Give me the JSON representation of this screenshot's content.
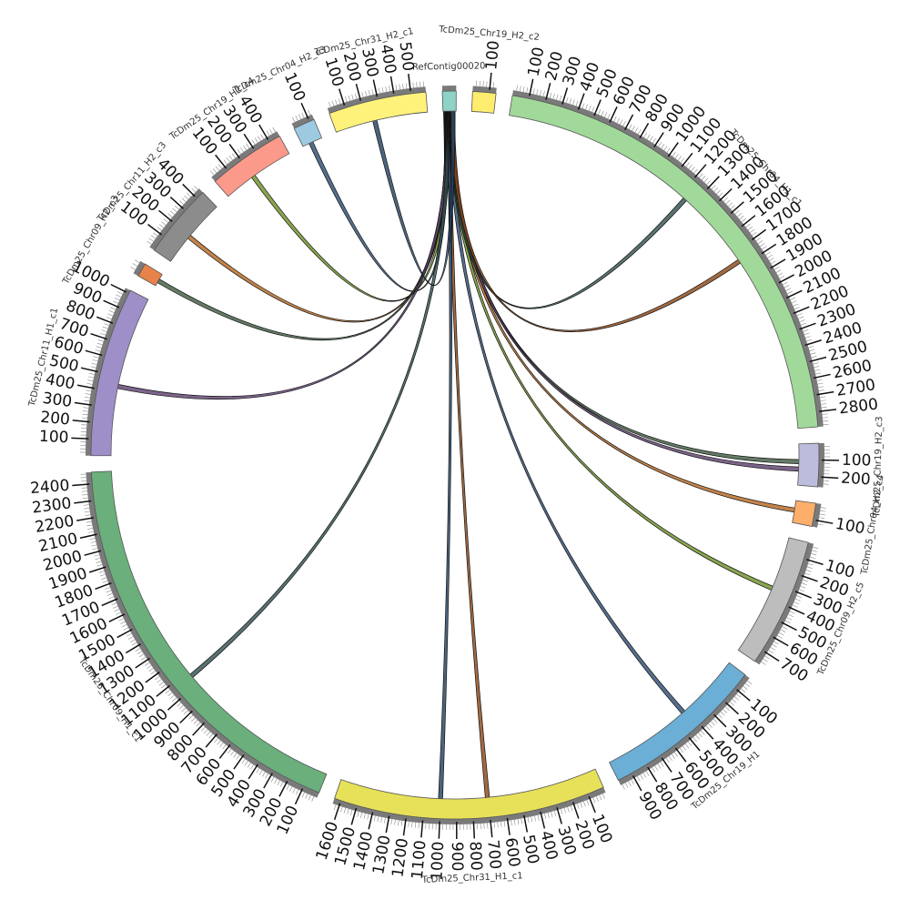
{
  "chart_data": {
    "type": "chord",
    "title": "",
    "segments": [
      {
        "name": "RefContig00020",
        "length": 20,
        "color": "#8dd3c7"
      },
      {
        "name": "TcDm25_Chr19_H2_c2",
        "length": 140,
        "color": "#ffed6f"
      },
      {
        "name": "TcDm25_Chr04_H1_c1",
        "length": 2890,
        "color": "#a1d99b"
      },
      {
        "name": "TcDm25_Chr19_H2_c3",
        "length": 260,
        "color": "#bcbddc"
      },
      {
        "name": "TcDm25_Chr04_H2_c4",
        "length": 140,
        "color": "#fdae6b"
      },
      {
        "name": "TcDm25_Chr09_H2_c5",
        "length": 780,
        "color": "#bdbdbd"
      },
      {
        "name": "TcDm25_Chr19_H1",
        "length": 990,
        "color": "#6baed6"
      },
      {
        "name": "TcDm25_Chr31_H1_c1",
        "length": 1640,
        "color": "#e7e15a"
      },
      {
        "name": "TcDm25_Chr09_H1_c1",
        "length": 2470,
        "color": "#6aaf7c"
      },
      {
        "name": "TcDm25_Chr11_H1_c1",
        "length": 1020,
        "color": "#9e8fc9"
      },
      {
        "name": "TcDm25_Chr09_H2_c3",
        "length": 70,
        "color": "#e6824a"
      },
      {
        "name": "TcDm25_Chr11_H2_c3",
        "length": 450,
        "color": "#8c8c8c"
      },
      {
        "name": "TcDm25_Chr19_H2_c4",
        "length": 470,
        "color": "#fb9a8a"
      },
      {
        "name": "TcDm25_Chr04_H2_c3",
        "length": 130,
        "color": "#9ecae1"
      },
      {
        "name": "TcDm25_Chr31_H2_c1",
        "length": 590,
        "color": "#fff27a"
      }
    ],
    "links": [
      {
        "source": 0,
        "target": 13
      },
      {
        "source": 0,
        "target": 12
      },
      {
        "source": 0,
        "target": 11
      },
      {
        "source": 0,
        "target": 10
      },
      {
        "source": 0,
        "target": 9
      },
      {
        "source": 0,
        "target": 8
      },
      {
        "source": 0,
        "target": 7
      },
      {
        "source": 0,
        "target": 7
      },
      {
        "source": 0,
        "target": 6
      },
      {
        "source": 0,
        "target": 5
      },
      {
        "source": 0,
        "target": 4
      },
      {
        "source": 0,
        "target": 3
      },
      {
        "source": 0,
        "target": 3
      },
      {
        "source": 0,
        "target": 2
      },
      {
        "source": 0,
        "target": 2
      },
      {
        "source": 0,
        "target": 14
      }
    ]
  }
}
